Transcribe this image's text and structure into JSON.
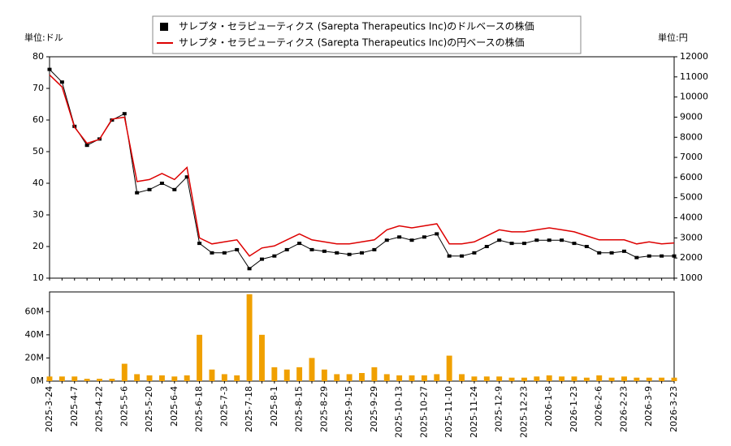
{
  "chart_data": {
    "type": "stock",
    "legend": "upper center",
    "y_unit_label": "単位:ドル",
    "y2_unit_label": "単位:円",
    "categories": [
      "2025-3-24",
      null,
      "2025-4-7",
      null,
      "2025-4-22",
      null,
      "2025-5-6",
      null,
      "2025-5-20",
      null,
      "2025-6-4",
      null,
      "2025-6-18",
      null,
      "2025-7-3",
      null,
      "2025-7-18",
      null,
      "2025-8-1",
      null,
      "2025-8-15",
      null,
      "2025-8-29",
      null,
      "2025-9-15",
      null,
      "2025-9-29",
      null,
      "2025-10-13",
      null,
      "2025-10-27",
      null,
      "2025-11-10",
      null,
      "2025-11-24",
      null,
      "2025-12-9",
      null,
      "2025-12-23",
      null,
      "2026-1-8",
      null,
      "2026-1-23",
      null,
      "2026-2-6",
      null,
      "2026-2-23",
      null,
      "2026-3-9",
      null,
      "2026-3-23"
    ],
    "series": [
      {
        "name": "サレプタ・セラピューティクス (Sarepta Therapeutics Inc)のドルベースの株価",
        "color": "#000000",
        "values": [
          76,
          72,
          58,
          52,
          54,
          60,
          62,
          37,
          38,
          40,
          38,
          42,
          21,
          18,
          18,
          19,
          13,
          16,
          17,
          19,
          21,
          19,
          18.5,
          18,
          17.5,
          18,
          19,
          22,
          23,
          22,
          23,
          24,
          17,
          17,
          18,
          20,
          22,
          21,
          21,
          22,
          22,
          22,
          21,
          20,
          18,
          18,
          18.5,
          16.5,
          17,
          17,
          17
        ]
      },
      {
        "name": "サレプタ・セラピューティクス (Sarepta Therapeutics Inc)の円ベースの株価",
        "color": "#dd0000",
        "axis": "y2",
        "values": [
          11100,
          10500,
          8500,
          7700,
          7900,
          8900,
          9000,
          5800,
          5900,
          6200,
          5900,
          6500,
          3000,
          2700,
          2800,
          2900,
          2100,
          2500,
          2600,
          2900,
          3200,
          2900,
          2800,
          2700,
          2700,
          2800,
          2900,
          3400,
          3600,
          3500,
          3600,
          3700,
          2700,
          2700,
          2800,
          3100,
          3400,
          3300,
          3300,
          3400,
          3500,
          3400,
          3300,
          3100,
          2900,
          2900,
          2900,
          2700,
          2800,
          2700,
          2750
        ]
      }
    ],
    "ylim": [
      10,
      80
    ],
    "yticks": [
      10,
      20,
      30,
      40,
      50,
      60,
      70,
      80
    ],
    "y2lim": [
      1000,
      12000
    ],
    "y2ticks": [
      1000,
      2000,
      3000,
      4000,
      5000,
      6000,
      7000,
      8000,
      9000,
      10000,
      11000,
      12000
    ],
    "volume": {
      "color": "#f0a000",
      "values": [
        4000000,
        4000000,
        4000000,
        2000000,
        2000000,
        2000000,
        15000000,
        6000000,
        5000000,
        5000000,
        4000000,
        5000000,
        40000000,
        10000000,
        6000000,
        5000000,
        75000000,
        40000000,
        12000000,
        10000000,
        12000000,
        20000000,
        10000000,
        6000000,
        6000000,
        7000000,
        12000000,
        6000000,
        5000000,
        5000000,
        5000000,
        6000000,
        22000000,
        6000000,
        4000000,
        4000000,
        4000000,
        3000000,
        3000000,
        4000000,
        5000000,
        4000000,
        4000000,
        3000000,
        5000000,
        3000000,
        4000000,
        3000000,
        3000000,
        3000000,
        3000000
      ],
      "ylim": [
        0,
        77000000
      ],
      "yticks": [
        {
          "value": 0,
          "label": "0M"
        },
        {
          "value": 20000000,
          "label": "20M"
        },
        {
          "value": 40000000,
          "label": "40M"
        },
        {
          "value": 60000000,
          "label": "60M"
        }
      ]
    }
  }
}
